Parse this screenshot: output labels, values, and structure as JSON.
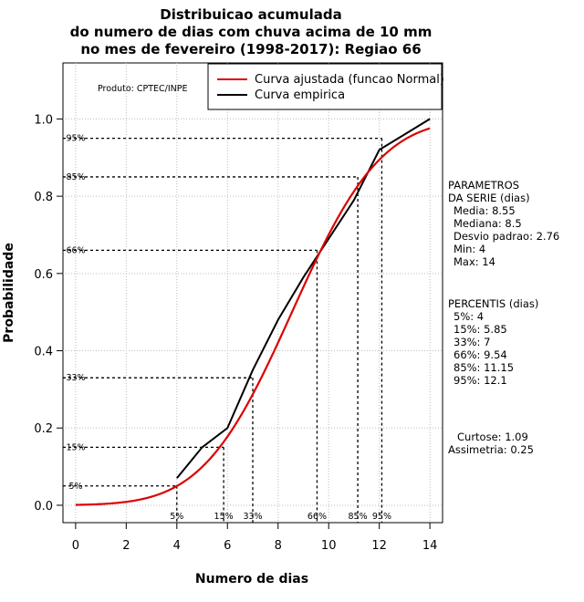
{
  "chart_data": {
    "type": "line",
    "title_lines": [
      "Distribuicao acumulada",
      "do numero de dias com chuva acima de 10 mm",
      "no mes de fevereiro (1998-2017): Regiao 66"
    ],
    "xlabel": "Numero de dias",
    "ylabel": "Probabilidade",
    "xlim": [
      -0.5,
      14.5
    ],
    "ylim": [
      -0.045,
      1.145
    ],
    "x_ticks": [
      0,
      2,
      4,
      6,
      8,
      10,
      12,
      14
    ],
    "y_ticks": [
      0.0,
      0.2,
      0.4,
      0.6,
      0.8,
      1.0
    ],
    "x_tick_labels": [
      "0",
      "2",
      "4",
      "6",
      "8",
      "10",
      "12",
      "14"
    ],
    "y_tick_labels": [
      "0.0",
      "0.2",
      "0.4",
      "0.6",
      "0.8",
      "1.0"
    ],
    "grid": true,
    "product_label": "Produto: CPTEC/INPE",
    "legend": {
      "position": "top-right",
      "entries": [
        {
          "label": "Curva ajustada (funcao Normal)",
          "color": "#dd0000"
        },
        {
          "label": "Curva empirica",
          "color": "#000000"
        }
      ]
    },
    "series": [
      {
        "name": "Curva ajustada (funcao Normal)",
        "kind": "normal_cdf",
        "mean": 8.55,
        "sd": 2.76,
        "x_range": [
          0,
          14
        ],
        "color": "#dd0000"
      },
      {
        "name": "Curva empirica",
        "x": [
          4,
          5,
          6,
          7,
          8,
          9,
          10,
          11,
          12,
          13,
          14
        ],
        "y": [
          0.07,
          0.15,
          0.2,
          0.35,
          0.48,
          0.59,
          0.69,
          0.79,
          0.92,
          0.96,
          1.0
        ],
        "color": "#000000"
      }
    ],
    "percentile_markers": [
      {
        "label": "5%",
        "x": 4,
        "y": 0.05
      },
      {
        "label": "15%",
        "x": 5.85,
        "y": 0.15
      },
      {
        "label": "33%",
        "x": 7,
        "y": 0.33
      },
      {
        "label": "66%",
        "x": 9.54,
        "y": 0.66
      },
      {
        "label": "85%",
        "x": 11.15,
        "y": 0.85
      },
      {
        "label": "95%",
        "x": 12.1,
        "y": 0.95
      }
    ],
    "side_panel": {
      "parametros_header": [
        "PARAMETROS",
        "DA SERIE (dias)"
      ],
      "parametros": [
        "Media: 8.55",
        "Mediana: 8.5",
        "Desvio padrao: 2.76",
        "Min: 4",
        "Max: 14"
      ],
      "percentis_header": "PERCENTIS (dias)",
      "percentis": [
        "5%: 4",
        "15%: 5.85",
        "33%: 7",
        "66%: 9.54",
        "85%: 11.15",
        "95%: 12.1"
      ],
      "curtose": "Curtose: 1.09",
      "assimetria": "Assimetria: 0.25"
    }
  }
}
